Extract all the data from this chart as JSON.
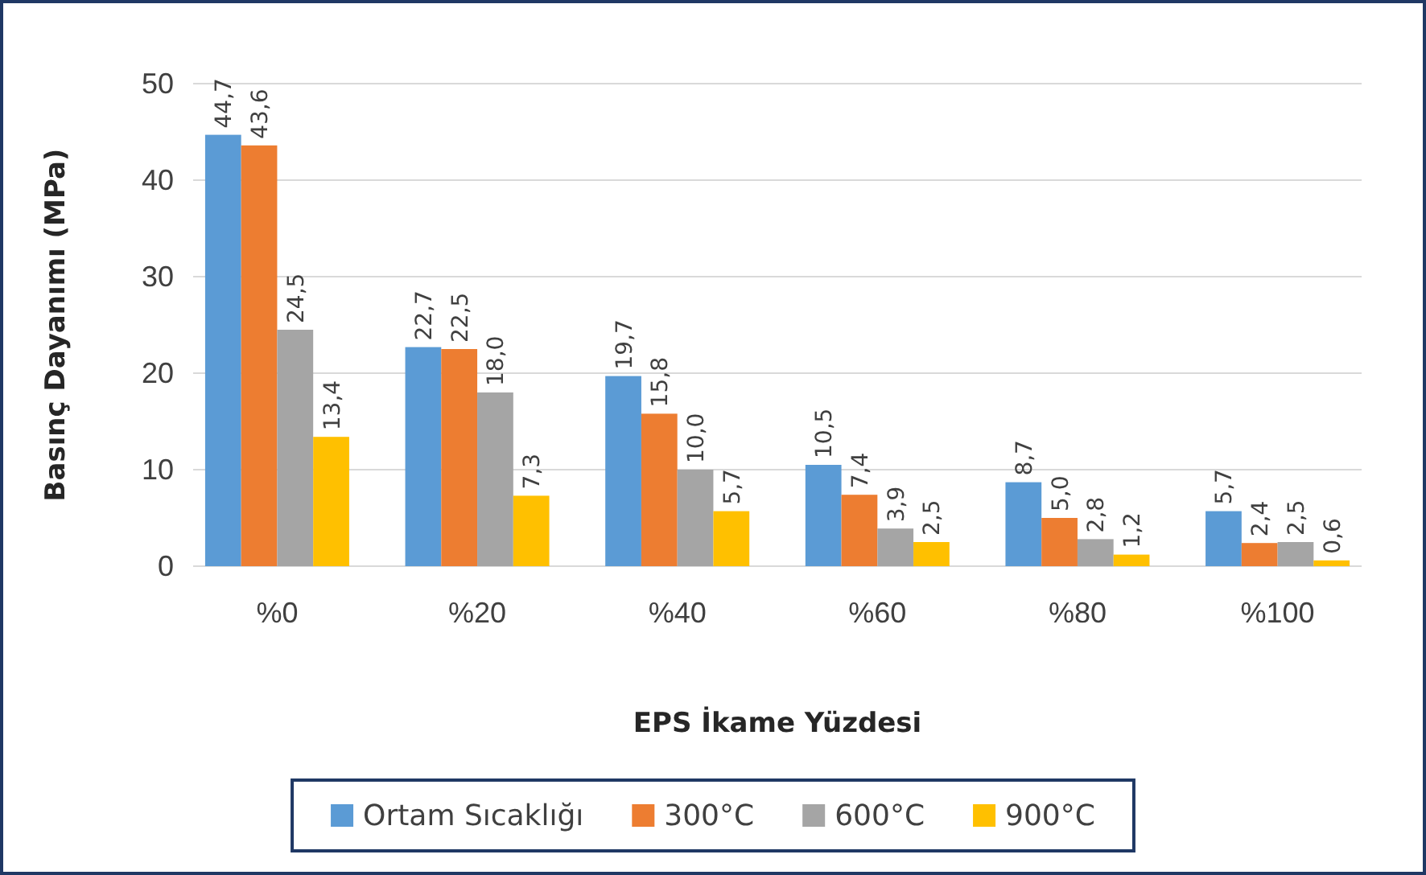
{
  "chart_data": {
    "type": "bar",
    "xlabel": "EPS İkame Yüzdesi",
    "ylabel": "Basınç Dayanımı (MPa)",
    "categories": [
      "%0",
      "%20",
      "%40",
      "%60",
      "%80",
      "%100"
    ],
    "series": [
      {
        "name": "Ortam Sıcaklığı",
        "color": "#5b9bd5",
        "values": [
          44.7,
          22.7,
          19.7,
          10.5,
          8.7,
          5.7
        ],
        "value_labels": [
          "44,7",
          "22,7",
          "19,7",
          "10,5",
          "8,7",
          "5,7"
        ]
      },
      {
        "name": "300°C",
        "color": "#ed7d31",
        "values": [
          43.6,
          22.5,
          15.8,
          7.4,
          5.0,
          2.4
        ],
        "value_labels": [
          "43,6",
          "22,5",
          "15,8",
          "7,4",
          "5,0",
          "2,4"
        ]
      },
      {
        "name": "600°C",
        "color": "#a5a5a5",
        "values": [
          24.5,
          18.0,
          10.0,
          3.9,
          2.8,
          2.5
        ],
        "value_labels": [
          "24,5",
          "18,0",
          "10,0",
          "3,9",
          "2,8",
          "2,5"
        ]
      },
      {
        "name": "900°C",
        "color": "#ffc000",
        "values": [
          13.4,
          7.3,
          5.7,
          2.5,
          1.2,
          0.6
        ],
        "value_labels": [
          "13,4",
          "7,3",
          "5,7",
          "2,5",
          "1,2",
          "0,6"
        ]
      }
    ],
    "ylim": [
      0,
      50
    ],
    "yticks": [
      0,
      10,
      20,
      30,
      40,
      50
    ],
    "grid": "y",
    "legend": "bottom"
  }
}
